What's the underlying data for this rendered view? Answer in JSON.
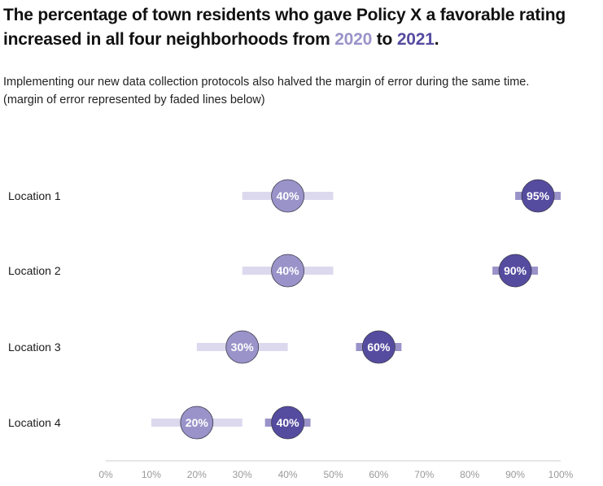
{
  "title": {
    "line1": "The percentage of town residents who gave Policy X a favorable rating",
    "line2_prefix": "increased in all four neighborhoods from",
    "year_a": "2020",
    "connector": "to",
    "year_b": "2021",
    "end": "."
  },
  "subtitle": {
    "line1": "Implementing our new data collection protocols also halved the margin of error during the same time.",
    "line2": "(margin of error represented by faded lines below)"
  },
  "colors": {
    "y2020": "#9a93c9",
    "y2021": "#554ca0",
    "err2020": "#dcd9ee",
    "err2021": "#9a93c9",
    "axis": "#cccccc",
    "tick_text": "#999999"
  },
  "chart_data": {
    "type": "dot",
    "categories": [
      "Location 1",
      "Location 2",
      "Location 3",
      "Location 4"
    ],
    "series": [
      {
        "name": "2020",
        "values": [
          40,
          40,
          30,
          20
        ],
        "margin_of_error": 10
      },
      {
        "name": "2021",
        "values": [
          95,
          90,
          60,
          40
        ],
        "margin_of_error": 5
      }
    ],
    "value_suffix": "%",
    "xlim": [
      0,
      100
    ],
    "xticks": [
      "0%",
      "10%",
      "20%",
      "30%",
      "40%",
      "50%",
      "60%",
      "70%",
      "80%",
      "90%",
      "100%"
    ],
    "xlabel": "",
    "ylabel": "",
    "grid": false
  }
}
